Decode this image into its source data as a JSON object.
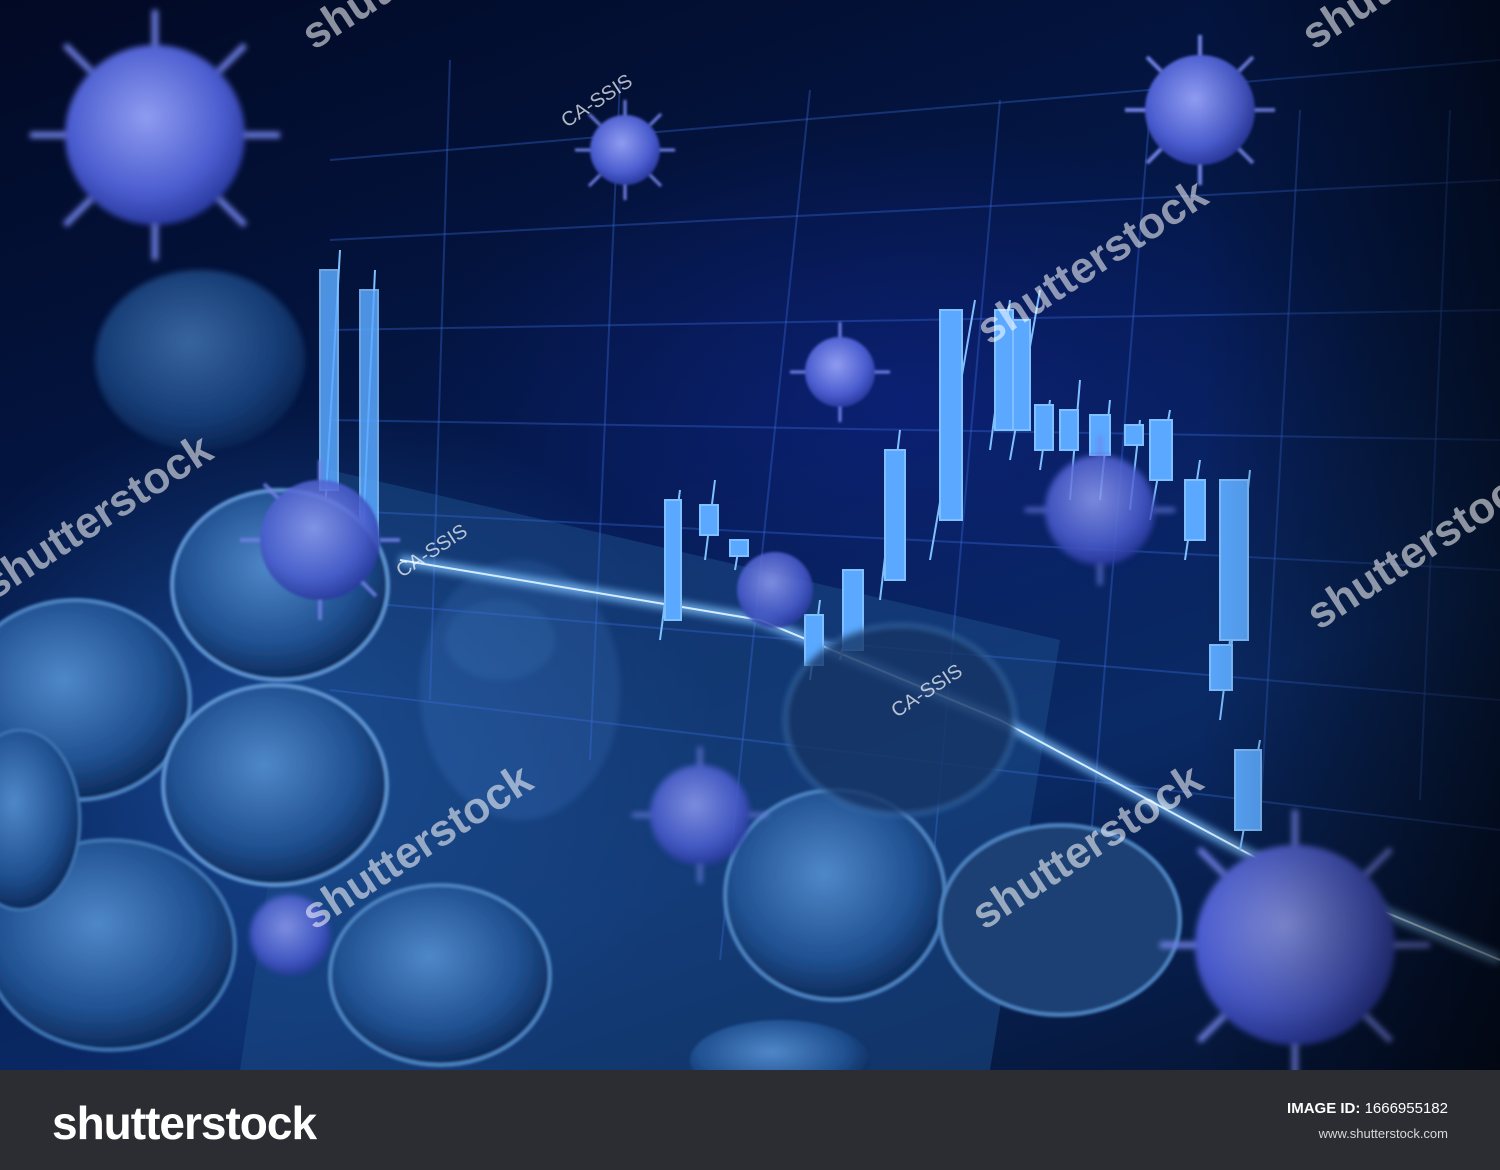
{
  "image": {
    "description_colors": {
      "primary": "#0a2a66",
      "accent": "#3a8bff",
      "glow": "#6fb4ff",
      "virus": "#5b6fd8"
    }
  },
  "watermarks": {
    "repeat_text": "shutterstock",
    "credit_text": "CA-SSIS"
  },
  "footer": {
    "logo": "shutterstock",
    "image_id_label": "IMAGE ID:",
    "image_id_value": "1666955182",
    "url": "www.shutterstock.com"
  }
}
